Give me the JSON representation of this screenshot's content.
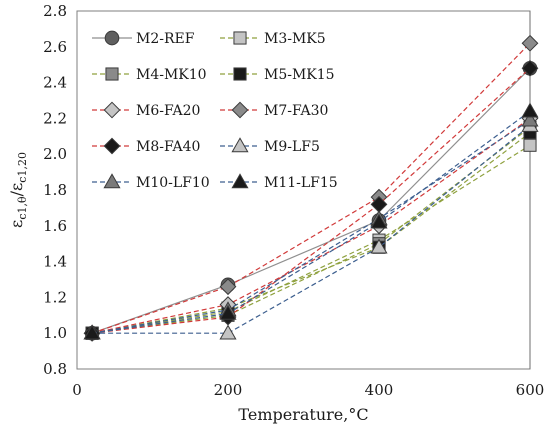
{
  "chart_data": {
    "type": "line",
    "xlabel": "Temperature,°C",
    "ylabel_main": "ε",
    "ylabel_sub1": "c1,θ",
    "ylabel_sub2": "c1,20",
    "ylabel_sep": "/ε",
    "xlim": [
      0,
      600
    ],
    "ylim": [
      0.8,
      2.8
    ],
    "xticks": [
      0,
      200,
      400,
      600
    ],
    "yticks": [
      0.8,
      1.0,
      1.2,
      1.4,
      1.6,
      1.8,
      2.0,
      2.2,
      2.4,
      2.6,
      2.8
    ],
    "x": [
      20,
      200,
      400,
      600
    ],
    "legend_position": "top-left",
    "series": [
      {
        "name": "M2-REF",
        "values": [
          1.0,
          1.27,
          1.63,
          2.48
        ],
        "color": "#8f8f8f",
        "dash": "none",
        "marker": "circle",
        "marker_fill": "#5f5f5f"
      },
      {
        "name": "M3-MK5",
        "values": [
          1.0,
          1.12,
          1.52,
          2.05
        ],
        "color": "#8fa13f",
        "dash": "dashed",
        "marker": "square",
        "marker_fill": "#c4c4c4"
      },
      {
        "name": "M4-MK10",
        "values": [
          1.0,
          1.1,
          1.5,
          2.15
        ],
        "color": "#8fa13f",
        "dash": "dashed",
        "marker": "square",
        "marker_fill": "#8a8a8a"
      },
      {
        "name": "M5-MK15",
        "values": [
          1.0,
          1.14,
          1.48,
          2.12
        ],
        "color": "#8fa13f",
        "dash": "dashed",
        "marker": "square",
        "marker_fill": "#1a1a1a"
      },
      {
        "name": "M6-FA20",
        "values": [
          1.0,
          1.16,
          1.6,
          2.2
        ],
        "color": "#d13a3a",
        "dash": "dashed",
        "marker": "diamond",
        "marker_fill": "#c4c4c4"
      },
      {
        "name": "M7-FA30",
        "values": [
          1.0,
          1.26,
          1.76,
          2.62
        ],
        "color": "#d13a3a",
        "dash": "dashed",
        "marker": "diamond",
        "marker_fill": "#8a8a8a"
      },
      {
        "name": "M8-FA40",
        "values": [
          1.0,
          1.09,
          1.72,
          2.48
        ],
        "color": "#d13a3a",
        "dash": "dashed",
        "marker": "diamond",
        "marker_fill": "#1a1a1a"
      },
      {
        "name": "M9-LF5",
        "values": [
          1.0,
          1.0,
          1.48,
          2.16
        ],
        "color": "#3d5f8f",
        "dash": "dashed",
        "marker": "triangle",
        "marker_fill": "#c4c4c4"
      },
      {
        "name": "M10-LF10",
        "values": [
          1.0,
          1.13,
          1.64,
          2.19
        ],
        "color": "#3d5f8f",
        "dash": "dashed",
        "marker": "triangle",
        "marker_fill": "#7a7a7a"
      },
      {
        "name": "M11-LF15",
        "values": [
          1.0,
          1.11,
          1.62,
          2.24
        ],
        "color": "#3d5f8f",
        "dash": "dashed",
        "marker": "triangle",
        "marker_fill": "#1a1a1a"
      }
    ]
  }
}
